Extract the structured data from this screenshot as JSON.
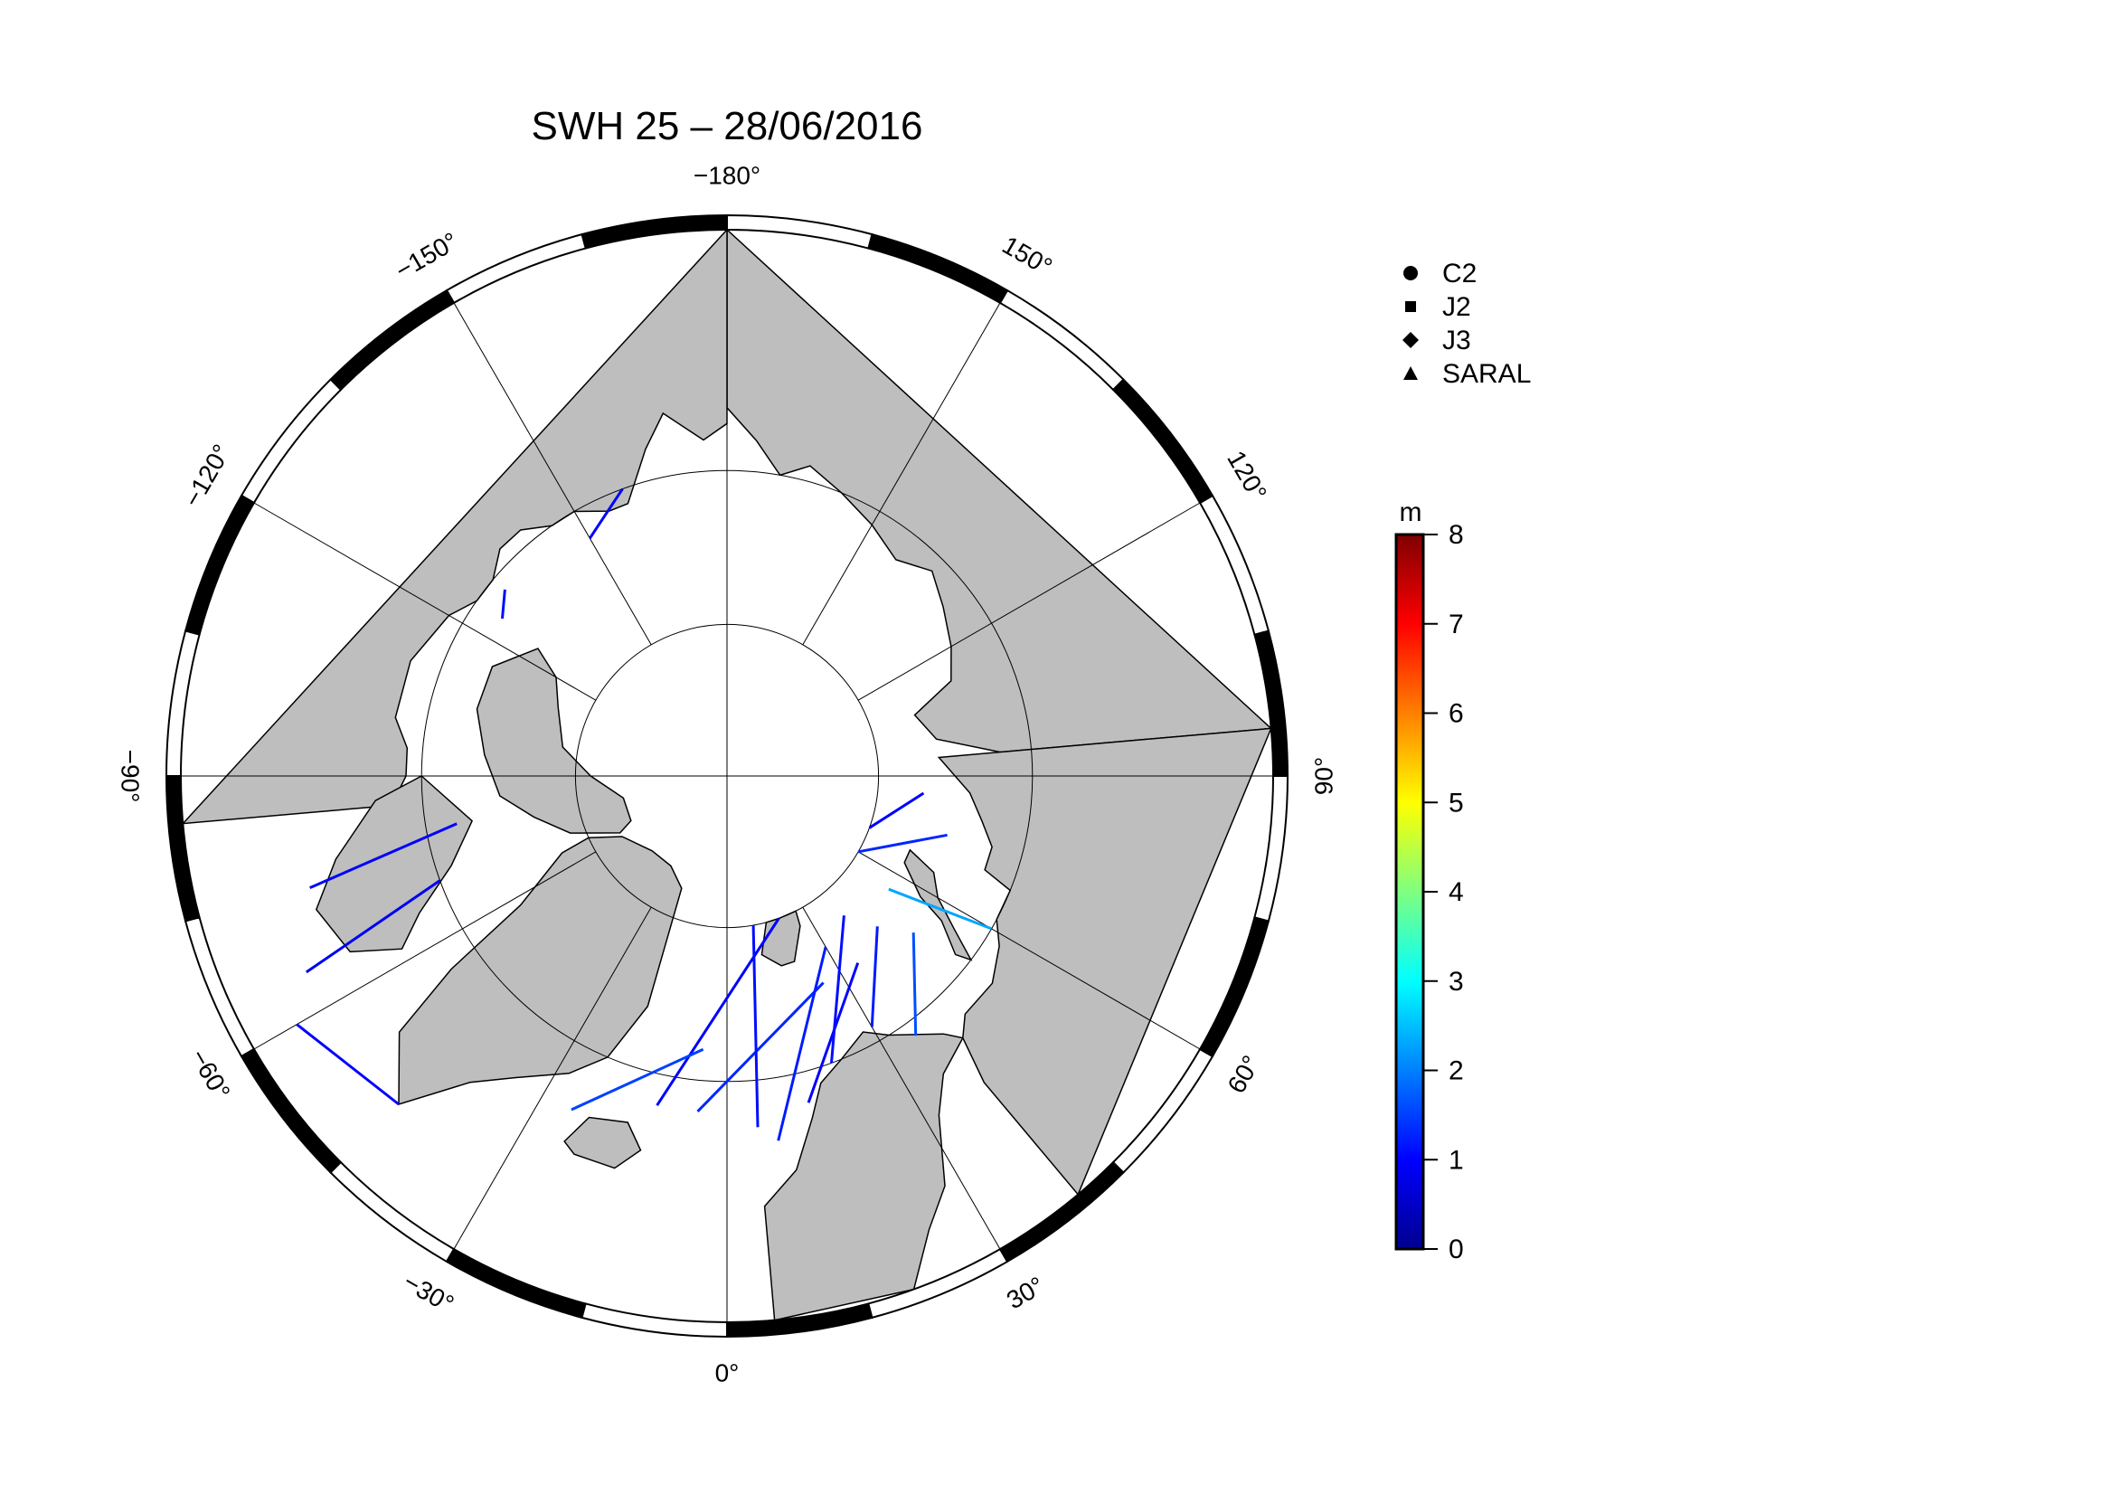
{
  "title": "SWH 25 – 28/06/2016",
  "map": {
    "projection": "north-polar-stereographic",
    "lon_labels": [
      {
        "lon": -180,
        "text": "−180"
      },
      {
        "lon": 150,
        "text": "150"
      },
      {
        "lon": 120,
        "text": "120"
      },
      {
        "lon": 90,
        "text": "90"
      },
      {
        "lon": 60,
        "text": "60"
      },
      {
        "lon": 30,
        "text": "30"
      },
      {
        "lon": 0,
        "text": "0"
      },
      {
        "lon": -30,
        "text": "−30"
      },
      {
        "lon": -60,
        "text": "−60"
      },
      {
        "lon": -90,
        "text": "−90"
      },
      {
        "lon": -120,
        "text": "−120"
      },
      {
        "lon": -150,
        "text": "−150"
      }
    ],
    "degree_symbol": "°",
    "land_color": "#bebebe",
    "ocean_color": "#ffffff"
  },
  "legend": {
    "items": [
      {
        "symbol": "circle",
        "label": "C2"
      },
      {
        "symbol": "square",
        "label": "J2"
      },
      {
        "symbol": "diamond",
        "label": "J3"
      },
      {
        "symbol": "triangle",
        "label": "SARAL"
      }
    ]
  },
  "colorbar": {
    "unit": "m",
    "min": 0,
    "max": 8,
    "ticks": [
      "0",
      "1",
      "2",
      "3",
      "4",
      "5",
      "6",
      "7",
      "8"
    ],
    "colormap": "jet"
  },
  "chart_data": {
    "type": "scatter",
    "title": "SWH 25 – 28/06/2016",
    "variable": "SWH",
    "value_range": [
      0,
      8
    ],
    "unit": "m",
    "series": [
      {
        "name": "C2",
        "marker": "circle"
      },
      {
        "name": "J2",
        "marker": "square"
      },
      {
        "name": "J3",
        "marker": "diamond"
      },
      {
        "name": "SARAL",
        "marker": "triangle"
      }
    ],
    "tracks": [
      {
        "lon1": 25,
        "lat1": 75,
        "lon2": -5,
        "lat2": 68,
        "swh": 1.3
      },
      {
        "lon1": 20,
        "lat1": 80,
        "lon2": -12,
        "lat2": 68,
        "swh": 1.0
      },
      {
        "lon1": 10,
        "lat1": 80,
        "lon2": 5,
        "lat2": 67,
        "swh": 1.1
      },
      {
        "lon1": 30,
        "lat1": 77,
        "lon2": 8,
        "lat2": 66,
        "swh": 1.2
      },
      {
        "lon1": 35,
        "lat1": 75,
        "lon2": 14,
        "lat2": 68,
        "swh": 1.0
      },
      {
        "lon1": 40,
        "lat1": 78,
        "lon2": 20,
        "lat2": 70,
        "swh": 1.1
      },
      {
        "lon1": 45,
        "lat1": 76,
        "lon2": 30,
        "lat2": 71,
        "swh": 1.2
      },
      {
        "lon1": 55,
        "lat1": 77,
        "lon2": 60,
        "lat2": 70,
        "swh": 2.3
      },
      {
        "lon1": 50,
        "lat1": 74,
        "lon2": 36,
        "lat2": 69,
        "swh": 1.6
      },
      {
        "lon1": 60,
        "lat1": 80,
        "lon2": 75,
        "lat2": 75,
        "swh": 1.3
      },
      {
        "lon1": 70,
        "lat1": 80,
        "lon2": 85,
        "lat2": 77,
        "swh": 1.0
      },
      {
        "lon1": -5,
        "lat1": 72,
        "lon2": -25,
        "lat2": 66,
        "swh": 1.5
      },
      {
        "lon1": -45,
        "lat1": 60,
        "lon2": -60,
        "lat2": 58,
        "swh": 1.0
      },
      {
        "lon1": -70,
        "lat1": 70,
        "lon2": -65,
        "lat2": 60,
        "swh": 0.9
      },
      {
        "lon1": -80,
        "lat1": 72,
        "lon2": -75,
        "lat2": 62,
        "swh": 1.0
      },
      {
        "lon1": -150,
        "lat1": 72,
        "lon2": -160,
        "lat2": 70,
        "swh": 1.0
      },
      {
        "lon1": -125,
        "lat1": 72,
        "lon2": -130,
        "lat2": 71,
        "swh": 1.1
      }
    ]
  }
}
